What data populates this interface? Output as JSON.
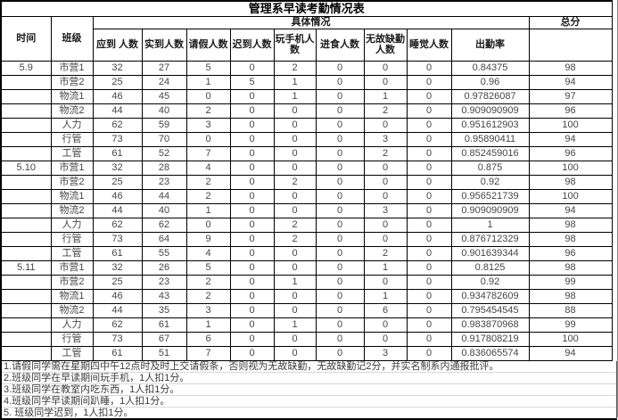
{
  "title": "管理系早读考勤情况表",
  "header": {
    "time_label": "时间",
    "class_label": "班级",
    "detail_group_label": "具体情况",
    "total_label": "总分",
    "detail_columns": [
      "应到 人数",
      "实到人数",
      "请假人数",
      "迟到人数",
      "玩手机人数",
      "进食人数",
      "无故缺勤人数",
      "睡觉人数",
      "出勤率"
    ]
  },
  "groups": [
    {
      "date": "5.9",
      "rows": [
        {
          "class": "市营1",
          "values": [
            "32",
            "27",
            "5",
            "0",
            "2",
            "0",
            "0",
            "0",
            "0.84375",
            "98"
          ]
        },
        {
          "class": "市营2",
          "values": [
            "25",
            "24",
            "1",
            "5",
            "1",
            "0",
            "0",
            "0",
            "0.96",
            "94"
          ]
        },
        {
          "class": "物流1",
          "values": [
            "46",
            "45",
            "0",
            "0",
            "1",
            "0",
            "1",
            "0",
            "0.97826087",
            "97"
          ]
        },
        {
          "class": "物流2",
          "values": [
            "44",
            "40",
            "2",
            "0",
            "0",
            "0",
            "2",
            "0",
            "0.909090909",
            "96"
          ]
        },
        {
          "class": "人力",
          "values": [
            "62",
            "59",
            "3",
            "0",
            "0",
            "0",
            "0",
            "0",
            "0.951612903",
            "100"
          ]
        },
        {
          "class": "行管",
          "values": [
            "73",
            "70",
            "0",
            "0",
            "0",
            "0",
            "3",
            "0",
            "0.95890411",
            "94"
          ]
        },
        {
          "class": "工管",
          "values": [
            "61",
            "52",
            "7",
            "0",
            "0",
            "0",
            "2",
            "0",
            "0.852459016",
            "96"
          ]
        }
      ]
    },
    {
      "date": "5.10",
      "rows": [
        {
          "class": "市营1",
          "values": [
            "32",
            "28",
            "4",
            "0",
            "0",
            "0",
            "0",
            "0",
            "0.875",
            "100"
          ]
        },
        {
          "class": "市营2",
          "values": [
            "25",
            "23",
            "2",
            "0",
            "2",
            "0",
            "0",
            "0",
            "0.92",
            "98"
          ]
        },
        {
          "class": "物流1",
          "values": [
            "46",
            "44",
            "2",
            "0",
            "0",
            "0",
            "0",
            "0",
            "0.956521739",
            "100"
          ]
        },
        {
          "class": "物流2",
          "values": [
            "44",
            "40",
            "1",
            "0",
            "0",
            "0",
            "3",
            "0",
            "0.909090909",
            "94"
          ]
        },
        {
          "class": "人力",
          "values": [
            "62",
            "62",
            "0",
            "0",
            "2",
            "0",
            "0",
            "0",
            "1",
            "98"
          ]
        },
        {
          "class": "行管",
          "values": [
            "73",
            "64",
            "9",
            "0",
            "2",
            "0",
            "0",
            "0",
            "0.876712329",
            "98"
          ]
        },
        {
          "class": "工管",
          "values": [
            "61",
            "55",
            "4",
            "0",
            "0",
            "0",
            "2",
            "0",
            "0.901639344",
            "96"
          ]
        }
      ]
    },
    {
      "date": "5.11",
      "rows": [
        {
          "class": "市营1",
          "values": [
            "32",
            "26",
            "5",
            "0",
            "0",
            "0",
            "1",
            "0",
            "0.8125",
            "98"
          ]
        },
        {
          "class": "市营2",
          "values": [
            "25",
            "23",
            "2",
            "0",
            "1",
            "0",
            "0",
            "0",
            "0.92",
            "99"
          ]
        },
        {
          "class": "物流1",
          "values": [
            "46",
            "43",
            "2",
            "0",
            "0",
            "0",
            "1",
            "0",
            "0.934782609",
            "98"
          ]
        },
        {
          "class": "物流2",
          "values": [
            "44",
            "35",
            "3",
            "0",
            "0",
            "0",
            "6",
            "0",
            "0.795454545",
            "88"
          ]
        },
        {
          "class": "人力",
          "values": [
            "62",
            "61",
            "1",
            "0",
            "1",
            "0",
            "0",
            "0",
            "0.983870968",
            "99"
          ]
        },
        {
          "class": "行管",
          "values": [
            "73",
            "67",
            "6",
            "0",
            "0",
            "0",
            "0",
            "0",
            "0.917808219",
            "100"
          ]
        },
        {
          "class": "工管",
          "values": [
            "61",
            "51",
            "7",
            "0",
            "0",
            "0",
            "3",
            "0",
            "0.836065574",
            "94"
          ]
        }
      ]
    }
  ],
  "notes": [
    "1.请假同学需在星期四中午12点时及时上交请假条，否则视为无故缺勤，无故缺勤记2分，并实名制系内通报批评。",
    "2.班级同学在早读期间玩手机，1人扣1分。",
    "3.班级同学在教室内吃东西，1人扣1分。",
    "4.班级同学早读期间趴睡，1人扣1分。",
    "5. 班级同学迟到，1人扣1分。"
  ]
}
